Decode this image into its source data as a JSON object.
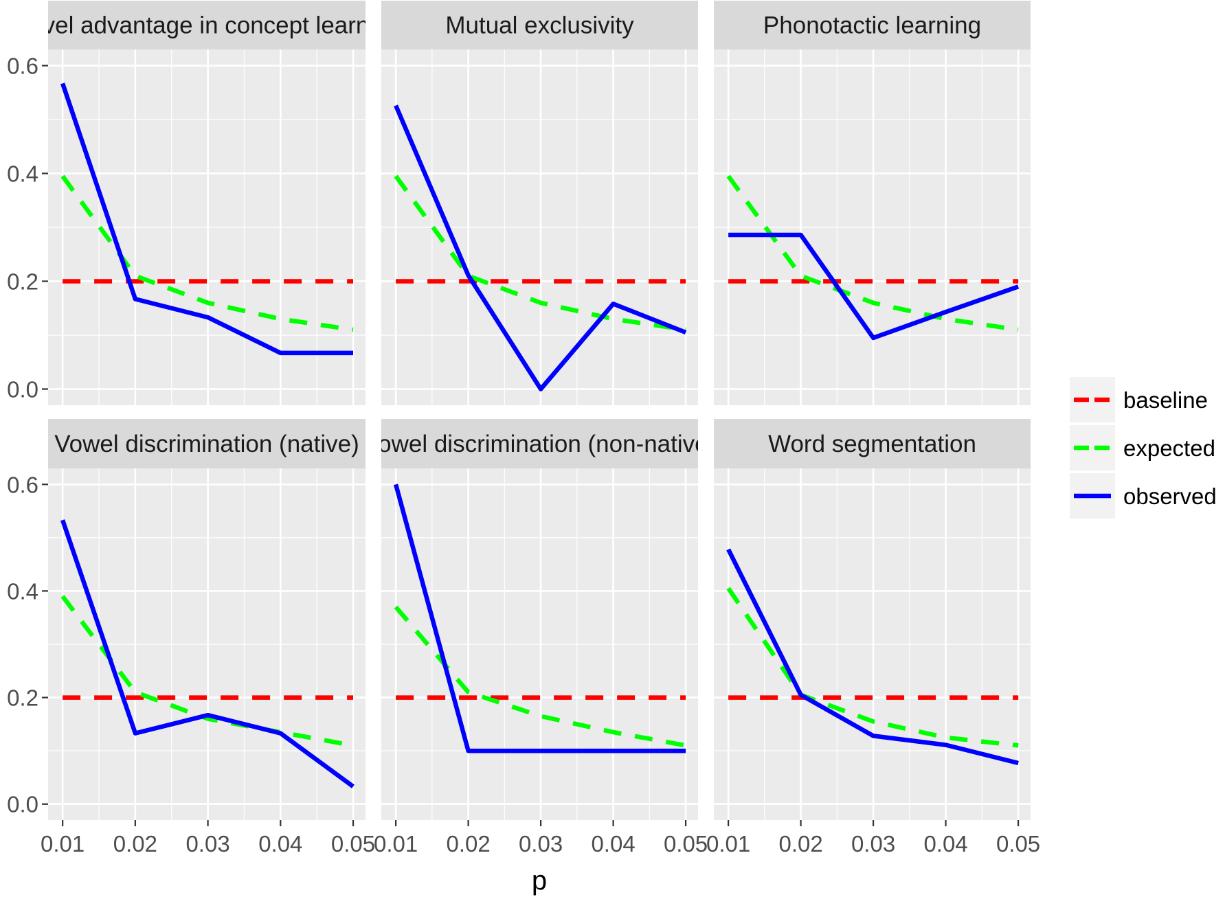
{
  "chart_data": {
    "type": "line",
    "x": [
      0.01,
      0.02,
      0.03,
      0.04,
      0.05
    ],
    "x_tick_labels": [
      "0.01",
      "0.02",
      "0.03",
      "0.04",
      "0.05"
    ],
    "y_ticks": [
      0.0,
      0.2,
      0.4,
      0.6
    ],
    "y_tick_labels": [
      "0.0",
      "0.2",
      "0.4",
      "0.6"
    ],
    "xlim": [
      0.008,
      0.0517
    ],
    "ylim": [
      -0.03,
      0.63
    ],
    "xlabel": "p",
    "ylabel": "",
    "grid": true,
    "legend_position": "right",
    "series_styles": [
      {
        "name": "baseline",
        "color": "#ff0000",
        "dash": "dashed"
      },
      {
        "name": "expected",
        "color": "#00ff00",
        "dash": "dashed"
      },
      {
        "name": "observed",
        "color": "#0000ff",
        "dash": "solid"
      }
    ],
    "panels": [
      {
        "title": "Novel advantage in concept learning",
        "series": [
          {
            "name": "baseline",
            "values": [
              0.2,
              0.2,
              0.2,
              0.2,
              0.2
            ]
          },
          {
            "name": "expected",
            "values": [
              0.395,
              0.21,
              0.16,
              0.13,
              0.11
            ]
          },
          {
            "name": "observed",
            "values": [
              0.567,
              0.167,
              0.133,
              0.067,
              0.067
            ]
          }
        ]
      },
      {
        "title": "Mutual exclusivity",
        "series": [
          {
            "name": "baseline",
            "values": [
              0.2,
              0.2,
              0.2,
              0.2,
              0.2
            ]
          },
          {
            "name": "expected",
            "values": [
              0.395,
              0.21,
              0.16,
              0.13,
              0.11
            ]
          },
          {
            "name": "observed",
            "values": [
              0.526,
              0.211,
              0.0,
              0.158,
              0.105
            ]
          }
        ]
      },
      {
        "title": "Phonotactic learning",
        "series": [
          {
            "name": "baseline",
            "values": [
              0.2,
              0.2,
              0.2,
              0.2,
              0.2
            ]
          },
          {
            "name": "expected",
            "values": [
              0.395,
              0.21,
              0.16,
              0.13,
              0.11
            ]
          },
          {
            "name": "observed",
            "values": [
              0.286,
              0.286,
              0.095,
              0.143,
              0.19
            ]
          }
        ]
      },
      {
        "title": "Vowel discrimination (native)",
        "series": [
          {
            "name": "baseline",
            "values": [
              0.2,
              0.2,
              0.2,
              0.2,
              0.2
            ]
          },
          {
            "name": "expected",
            "values": [
              0.39,
              0.21,
              0.16,
              0.135,
              0.11
            ]
          },
          {
            "name": "observed",
            "values": [
              0.533,
              0.133,
              0.167,
              0.133,
              0.033
            ]
          }
        ]
      },
      {
        "title": "Vowel discrimination (non-native)",
        "series": [
          {
            "name": "baseline",
            "values": [
              0.2,
              0.2,
              0.2,
              0.2,
              0.2
            ]
          },
          {
            "name": "expected",
            "values": [
              0.37,
              0.21,
              0.165,
              0.135,
              0.11
            ]
          },
          {
            "name": "observed",
            "values": [
              0.6,
              0.1,
              0.1,
              0.1,
              0.1
            ]
          }
        ]
      },
      {
        "title": "Word segmentation",
        "series": [
          {
            "name": "baseline",
            "values": [
              0.2,
              0.2,
              0.2,
              0.2,
              0.2
            ]
          },
          {
            "name": "expected",
            "values": [
              0.405,
              0.205,
              0.155,
              0.125,
              0.11
            ]
          },
          {
            "name": "observed",
            "values": [
              0.478,
              0.205,
              0.128,
              0.111,
              0.077
            ]
          }
        ]
      }
    ]
  }
}
